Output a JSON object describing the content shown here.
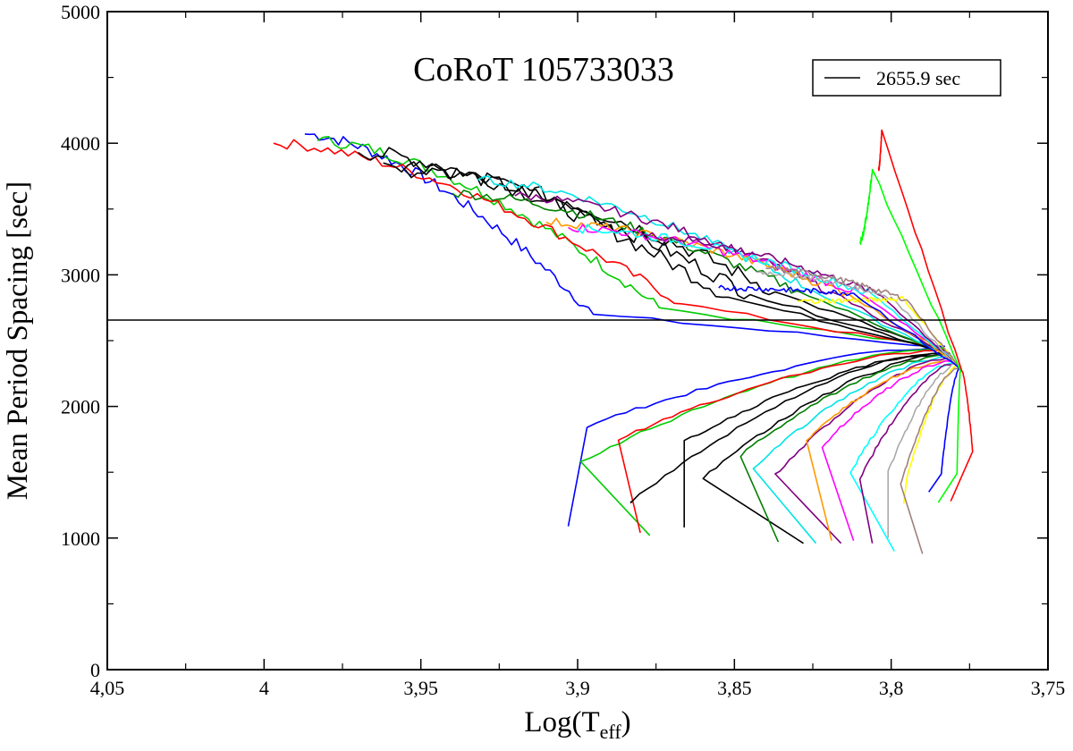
{
  "chart_data": {
    "type": "line",
    "title": "CoRoT 105733033",
    "xlabel": "Log(T",
    "xlabel_sub": "eff",
    "xlabel_close": ")",
    "ylabel": "Mean Period Spacing [sec]",
    "xlim": [
      4.05,
      3.75
    ],
    "ylim": [
      0,
      5000
    ],
    "x_reversed": true,
    "x_ticks": [
      4.05,
      4.0,
      3.95,
      3.9,
      3.85,
      3.8,
      3.75
    ],
    "x_tick_labels": [
      "4,05",
      "4",
      "3,95",
      "3,9",
      "3,85",
      "3,8",
      "3,75"
    ],
    "x_minor_ticks": [
      4.025,
      3.975,
      3.925,
      3.875,
      3.825,
      3.775
    ],
    "y_ticks": [
      0,
      1000,
      2000,
      3000,
      4000,
      5000
    ],
    "y_tick_labels": [
      "0",
      "1000",
      "2000",
      "3000",
      "4000",
      "5000"
    ],
    "y_minor_ticks": [
      500,
      1500,
      2500,
      3500,
      4500
    ],
    "legend": {
      "position": "top-right",
      "entries": [
        {
          "label": "2655.9 sec",
          "color": "#000000"
        }
      ]
    },
    "reference_line": {
      "value": 2655.9,
      "label": "2655.9 sec",
      "color": "#000000"
    },
    "track_colors": [
      "#0000ff",
      "#00cc00",
      "#ff0000",
      "#000000",
      "#000000",
      "#000000",
      "#008000",
      "#00e5e5",
      "#800080",
      "#ff9900",
      "#ff00ff",
      "#00ffff",
      "#800080",
      "#aaaaaa",
      "#ffff00",
      "#a08080",
      "#0000ff",
      "#00ff00",
      "#ff0000"
    ],
    "series": [
      {
        "name": "track-1",
        "color": "#0000ff",
        "wiggle": 45,
        "start": [
          3.987,
          4070
        ],
        "tip": [
          3.895,
          2700
        ],
        "kink": [
          3.897,
          1850
        ],
        "end": [
          3.903,
          1090
        ]
      },
      {
        "name": "track-2",
        "color": "#00cc00",
        "wiggle": 45,
        "start": [
          3.983,
          4020
        ],
        "tip": [
          3.874,
          2750
        ],
        "kink": [
          3.899,
          1580
        ],
        "end": [
          3.877,
          1020
        ]
      },
      {
        "name": "track-3",
        "color": "#ff0000",
        "wiggle": 40,
        "start": [
          3.997,
          4000
        ],
        "tip": [
          3.867,
          2780
        ],
        "kink": [
          3.887,
          1750
        ],
        "end": [
          3.88,
          1040
        ]
      },
      {
        "name": "track-4",
        "color": "#000000",
        "wiggle": 60,
        "start": [
          3.97,
          3930
        ],
        "tip": [
          3.852,
          2830
        ],
        "kink": [
          3.883,
          1280
        ],
        "end": [
          3.883,
          1280
        ]
      },
      {
        "name": "track-5",
        "color": "#000000",
        "wiggle": 60,
        "start": [
          3.962,
          3850
        ],
        "tip": [
          3.845,
          2850
        ],
        "kink": [
          3.866,
          1730
        ],
        "end": [
          3.866,
          1080
        ]
      },
      {
        "name": "track-6",
        "color": "#000000",
        "wiggle": 60,
        "start": [
          3.955,
          3800
        ],
        "tip": [
          3.837,
          2870
        ],
        "kink": [
          3.86,
          1460
        ],
        "end": [
          3.828,
          960
        ]
      },
      {
        "name": "track-7",
        "color": "#008000",
        "wiggle": 40,
        "start": [
          3.94,
          3620
        ],
        "tip": [
          3.83,
          2880
        ],
        "kink": [
          3.848,
          1630
        ],
        "end": [
          3.836,
          970
        ]
      },
      {
        "name": "track-8",
        "color": "#00e5e5",
        "wiggle": 35,
        "start": [
          3.932,
          3720
        ],
        "tip": [
          3.825,
          2880
        ],
        "kink": [
          3.844,
          1530
        ],
        "end": [
          3.824,
          960
        ]
      },
      {
        "name": "track-9",
        "color": "#800080",
        "wiggle": 35,
        "start": [
          3.92,
          3600
        ],
        "tip": [
          3.819,
          2870
        ],
        "kink": [
          3.837,
          1480
        ],
        "end": [
          3.816,
          960
        ]
      },
      {
        "name": "track-10",
        "color": "#ff9900",
        "wiggle": 35,
        "start": [
          3.91,
          3400
        ],
        "tip": [
          3.814,
          2860
        ],
        "kink": [
          3.827,
          1750
        ],
        "end": [
          3.819,
          980
        ]
      },
      {
        "name": "track-11",
        "color": "#ff00ff",
        "wiggle": 35,
        "start": [
          3.903,
          3360
        ],
        "tip": [
          3.81,
          2860
        ],
        "kink": [
          3.822,
          1700
        ],
        "end": [
          3.812,
          980
        ]
      },
      {
        "name": "track-12",
        "color": "#00ffff",
        "wiggle": 35,
        "start": [
          3.9,
          3350
        ],
        "tip": [
          3.806,
          2850
        ],
        "kink": [
          3.813,
          1500
        ],
        "end": [
          3.799,
          900
        ]
      },
      {
        "name": "track-13",
        "color": "#800080",
        "wiggle": 30,
        "start": [
          3.88,
          3300
        ],
        "tip": [
          3.803,
          2840
        ],
        "kink": [
          3.81,
          1450
        ],
        "end": [
          3.806,
          960
        ]
      },
      {
        "name": "track-14",
        "color": "#aaaaaa",
        "wiggle": 20,
        "start": [
          3.843,
          3020
        ],
        "tip": [
          3.8,
          2830
        ],
        "kink": [
          3.801,
          1500
        ],
        "end": [
          3.801,
          1000
        ]
      },
      {
        "name": "track-15",
        "color": "#ffff00",
        "wiggle": 20,
        "start": [
          3.83,
          2800
        ],
        "tip": [
          3.796,
          2820
        ],
        "kink": [
          3.795,
          1450
        ],
        "end": [
          3.796,
          1260
        ]
      },
      {
        "name": "track-16",
        "color": "#a08080",
        "wiggle": 20,
        "start": [
          3.84,
          3050
        ],
        "tip": [
          3.795,
          2810
        ],
        "kink": [
          3.797,
          1400
        ],
        "end": [
          3.79,
          880
        ]
      },
      {
        "name": "track-17",
        "color": "#0000ff",
        "wiggle": 20,
        "start": [
          3.855,
          2900
        ],
        "tip": [
          3.812,
          2860
        ],
        "kink": [
          3.784,
          1500
        ],
        "end": [
          3.788,
          1350
        ]
      },
      {
        "name": "track-18",
        "color": "#00ff00",
        "wiggle": 25,
        "start": [
          3.81,
          3250
        ],
        "tip": [
          3.806,
          3800
        ],
        "kink": [
          3.779,
          1500
        ],
        "end": [
          3.785,
          1270
        ]
      },
      {
        "name": "track-19",
        "color": "#ff0000",
        "wiggle": 20,
        "start": [
          3.804,
          3800
        ],
        "tip": [
          3.803,
          4100
        ],
        "kink": [
          3.774,
          1650
        ],
        "end": [
          3.781,
          1280
        ]
      }
    ]
  }
}
